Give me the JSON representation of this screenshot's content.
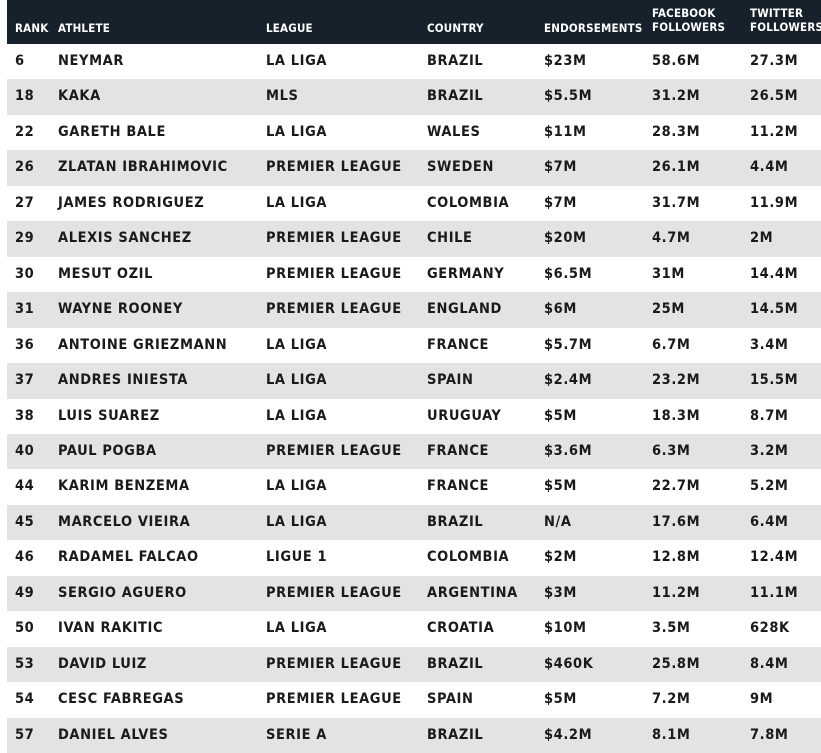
{
  "columns": {
    "rank": "RANK",
    "athlete": "ATHLETE",
    "league": "LEAGUE",
    "country": "COUNTRY",
    "endorsements": "ENDORSEMENTS",
    "facebook_line1": "FACEBOOK",
    "facebook_line2": "FOLLOWERS",
    "twitter_line1": "TWITTER",
    "twitter_line2": "FOLLOWERS"
  },
  "rows": [
    {
      "rank": "6",
      "athlete": "NEYMAR",
      "league": "LA LIGA",
      "country": "BRAZIL",
      "endorsements": "$23M",
      "facebook": "58.6M",
      "twitter": "27.3M"
    },
    {
      "rank": "18",
      "athlete": "KAKA",
      "league": "MLS",
      "country": "BRAZIL",
      "endorsements": "$5.5M",
      "facebook": "31.2M",
      "twitter": "26.5M"
    },
    {
      "rank": "22",
      "athlete": "GARETH BALE",
      "league": "LA LIGA",
      "country": "WALES",
      "endorsements": "$11M",
      "facebook": "28.3M",
      "twitter": "11.2M"
    },
    {
      "rank": "26",
      "athlete": "ZLATAN IBRAHIMOVIC",
      "league": "PREMIER LEAGUE",
      "country": "SWEDEN",
      "endorsements": "$7M",
      "facebook": "26.1M",
      "twitter": "4.4M"
    },
    {
      "rank": "27",
      "athlete": "JAMES RODRIGUEZ",
      "league": "LA LIGA",
      "country": "COLOMBIA",
      "endorsements": "$7M",
      "facebook": "31.7M",
      "twitter": "11.9M"
    },
    {
      "rank": "29",
      "athlete": "ALEXIS SANCHEZ",
      "league": "PREMIER LEAGUE",
      "country": "CHILE",
      "endorsements": "$20M",
      "facebook": "4.7M",
      "twitter": "2M"
    },
    {
      "rank": "30",
      "athlete": "MESUT OZIL",
      "league": "PREMIER LEAGUE",
      "country": "GERMANY",
      "endorsements": "$6.5M",
      "facebook": "31M",
      "twitter": "14.4M"
    },
    {
      "rank": "31",
      "athlete": "WAYNE ROONEY",
      "league": "PREMIER LEAGUE",
      "country": "ENGLAND",
      "endorsements": "$6M",
      "facebook": "25M",
      "twitter": "14.5M"
    },
    {
      "rank": "36",
      "athlete": "ANTOINE GRIEZMANN",
      "league": "LA LIGA",
      "country": "FRANCE",
      "endorsements": "$5.7M",
      "facebook": "6.7M",
      "twitter": "3.4M"
    },
    {
      "rank": "37",
      "athlete": "ANDRES INIESTA",
      "league": "LA LIGA",
      "country": "SPAIN",
      "endorsements": "$2.4M",
      "facebook": "23.2M",
      "twitter": "15.5M"
    },
    {
      "rank": "38",
      "athlete": "LUIS SUAREZ",
      "league": "LA LIGA",
      "country": "URUGUAY",
      "endorsements": "$5M",
      "facebook": "18.3M",
      "twitter": "8.7M"
    },
    {
      "rank": "40",
      "athlete": "PAUL POGBA",
      "league": "PREMIER LEAGUE",
      "country": "FRANCE",
      "endorsements": "$3.6M",
      "facebook": "6.3M",
      "twitter": "3.2M"
    },
    {
      "rank": "44",
      "athlete": "KARIM BENZEMA",
      "league": "LA LIGA",
      "country": "FRANCE",
      "endorsements": "$5M",
      "facebook": "22.7M",
      "twitter": "5.2M"
    },
    {
      "rank": "45",
      "athlete": "MARCELO VIEIRA",
      "league": "LA LIGA",
      "country": "BRAZIL",
      "endorsements": "N/A",
      "facebook": "17.6M",
      "twitter": "6.4M"
    },
    {
      "rank": "46",
      "athlete": "RADAMEL FALCAO",
      "league": "LIGUE 1",
      "country": "COLOMBIA",
      "endorsements": "$2M",
      "facebook": "12.8M",
      "twitter": "12.4M"
    },
    {
      "rank": "49",
      "athlete": "SERGIO AGUERO",
      "league": "PREMIER LEAGUE",
      "country": "ARGENTINA",
      "endorsements": "$3M",
      "facebook": "11.2M",
      "twitter": "11.1M"
    },
    {
      "rank": "50",
      "athlete": "IVAN RAKITIC",
      "league": "LA LIGA",
      "country": "CROATIA",
      "endorsements": "$10M",
      "facebook": "3.5M",
      "twitter": "628K"
    },
    {
      "rank": "53",
      "athlete": "DAVID LUIZ",
      "league": "PREMIER LEAGUE",
      "country": "BRAZIL",
      "endorsements": "$460K",
      "facebook": "25.8M",
      "twitter": "8.4M"
    },
    {
      "rank": "54",
      "athlete": "CESC FABREGAS",
      "league": "PREMIER LEAGUE",
      "country": "SPAIN",
      "endorsements": "$5M",
      "facebook": "7.2M",
      "twitter": "9M"
    },
    {
      "rank": "57",
      "athlete": "DANIEL ALVES",
      "league": "SERIE A",
      "country": "BRAZIL",
      "endorsements": "$4.2M",
      "facebook": "8.1M",
      "twitter": "7.8M"
    }
  ],
  "colors": {
    "header_bg": "#16212b",
    "header_text": "#ffffff",
    "row_alt_bg": "#e3e3e3",
    "row_bg": "#ffffff",
    "body_text": "#1a1a1a"
  }
}
